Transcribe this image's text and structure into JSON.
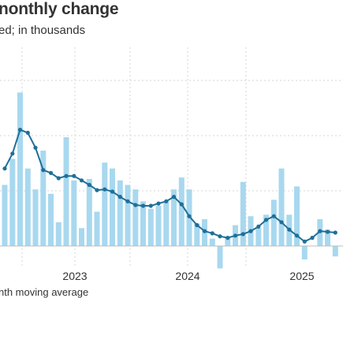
{
  "header": {
    "title": "nonthly change",
    "subtitle": "ed; in thousands"
  },
  "legend": {
    "line_label": "nth moving average"
  },
  "colors": {
    "bar": "#a8d8ef",
    "line": "#1f6f98",
    "grid": "#d6d6d6",
    "baseline": "#bdbdbd"
  },
  "chart_data": {
    "type": "bar",
    "title": "nonthly change",
    "subtitle": "ed; in thousands",
    "x_tick_labels": [
      "2023",
      "2024",
      "2025"
    ],
    "series": [
      {
        "type": "bar",
        "values": [
          410,
          585,
          1030,
          520,
          380,
          640,
          350,
          160,
          730,
          440,
          120,
          450,
          230,
          560,
          520,
          440,
          410,
          380,
          300,
          250,
          270,
          300,
          380,
          460,
          380,
          150,
          180,
          50,
          -150,
          60,
          140,
          430,
          200,
          120,
          210,
          310,
          520,
          210,
          400,
          -90,
          0,
          180,
          110,
          -70
        ]
      },
      {
        "type": "line",
        "name": "nth moving average",
        "values": [
          520,
          620,
          780,
          760,
          660,
          510,
          490,
          455,
          470,
          470,
          440,
          410,
          375,
          380,
          365,
          330,
          300,
          275,
          270,
          270,
          285,
          300,
          330,
          280,
          200,
          140,
          100,
          85,
          65,
          55,
          70,
          80,
          100,
          130,
          175,
          200,
          160,
          110,
          70,
          30,
          55,
          100,
          95,
          90
        ]
      }
    ],
    "grid": true
  }
}
